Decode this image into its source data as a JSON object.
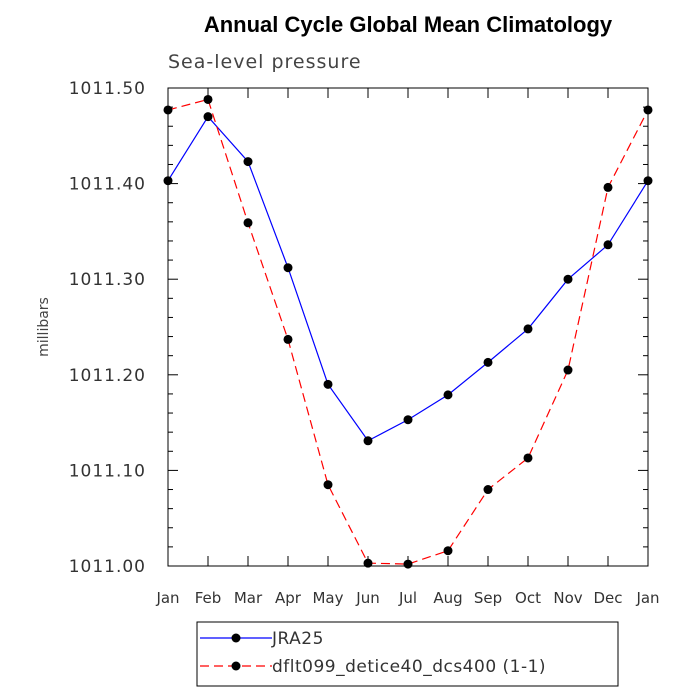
{
  "chart_data": {
    "type": "line",
    "title": "Annual Cycle Global Mean Climatology",
    "subtitle": "Sea-level pressure",
    "xlabel": "",
    "ylabel": "millibars",
    "categories": [
      "Jan",
      "Feb",
      "Mar",
      "Apr",
      "May",
      "Jun",
      "Jul",
      "Aug",
      "Sep",
      "Oct",
      "Nov",
      "Dec",
      "Jan"
    ],
    "ylim": [
      1011.0,
      1011.5
    ],
    "yticks": [
      1011.0,
      1011.1,
      1011.2,
      1011.3,
      1011.4,
      1011.5
    ],
    "ytick_labels": [
      "1011.00",
      "1011.10",
      "1011.20",
      "1011.30",
      "1011.40",
      "1011.50"
    ],
    "series": [
      {
        "name": "JRA25",
        "color": "#0000ff",
        "style": "solid",
        "values": [
          1011.403,
          1011.47,
          1011.423,
          1011.312,
          1011.19,
          1011.131,
          1011.153,
          1011.179,
          1011.213,
          1011.248,
          1011.3,
          1011.336,
          1011.403
        ]
      },
      {
        "name": "dflt099_detice40_dcs400 (1-1)",
        "color": "#ff0000",
        "style": "dashed",
        "values": [
          1011.477,
          1011.488,
          1011.359,
          1011.237,
          1011.085,
          1011.003,
          1011.002,
          1011.016,
          1011.08,
          1011.113,
          1011.205,
          1011.396,
          1011.477
        ]
      }
    ],
    "legend": "bottom-center"
  }
}
